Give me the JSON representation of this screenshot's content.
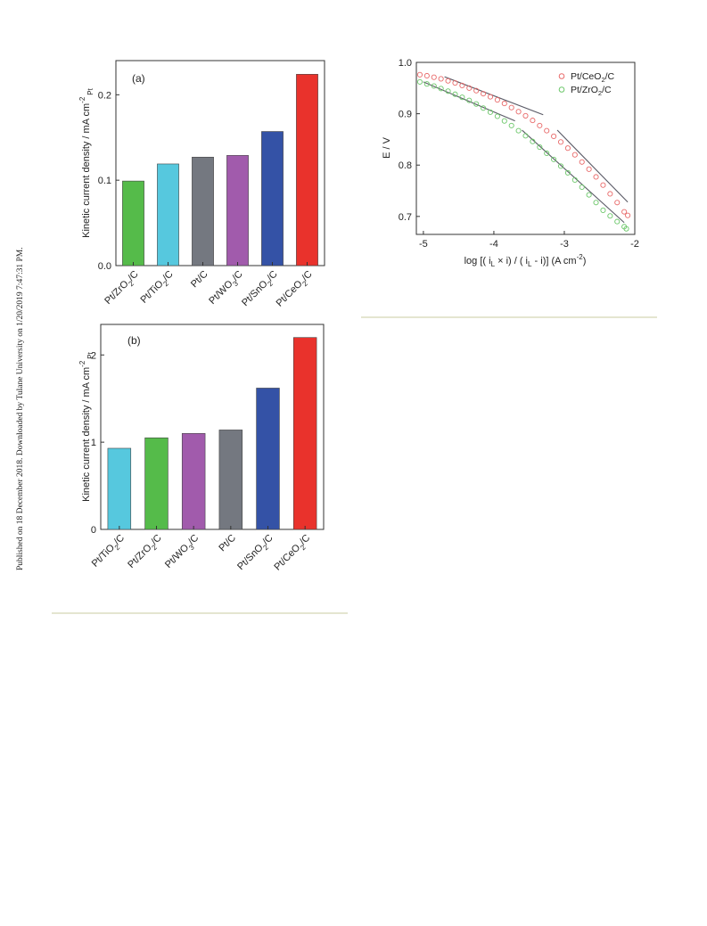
{
  "side_note": "Published on 18 December 2018. Downloaded by Tulane University on 1/20/2019 7:47:31 PM.",
  "chart_data": [
    {
      "type": "bar",
      "panel_label": "(a)",
      "ylabel": "Kinetic current density / mA cm",
      "ylabel_sup": "-2",
      "ylabel_sub": "Pt",
      "ylim": [
        0,
        0.24
      ],
      "yticks": [
        "0.0",
        "0.1",
        "0.2"
      ],
      "categories": [
        {
          "main": "Pt/ZrO",
          "sub": "2",
          "tail": "/C"
        },
        {
          "main": "Pt/TiO",
          "sub": "2",
          "tail": "/C"
        },
        {
          "main": "Pt/C",
          "sub": "",
          "tail": ""
        },
        {
          "main": "Pt/WO",
          "sub": "3",
          "tail": "/C"
        },
        {
          "main": "Pt/SnO",
          "sub": "2",
          "tail": "/C"
        },
        {
          "main": "Pt/CeO",
          "sub": "2",
          "tail": "/C"
        }
      ],
      "values": [
        0.099,
        0.119,
        0.127,
        0.129,
        0.157,
        0.224
      ],
      "colors": [
        "#55bb4a",
        "#56c8de",
        "#747880",
        "#a15bac",
        "#3452a6",
        "#e9322c"
      ]
    },
    {
      "type": "bar",
      "panel_label": "(b)",
      "ylabel": "Kinetic current density / mA cm",
      "ylabel_sup": "-2",
      "ylabel_sub": "Pt",
      "ylim": [
        0,
        2.35
      ],
      "yticks": [
        "0",
        "1",
        "2"
      ],
      "categories": [
        {
          "main": "Pt/TiO",
          "sub": "2",
          "tail": "/C"
        },
        {
          "main": "Pt/ZrO",
          "sub": "2",
          "tail": "/C"
        },
        {
          "main": "Pt/WO",
          "sub": "3",
          "tail": "/C"
        },
        {
          "main": "Pt/C",
          "sub": "",
          "tail": ""
        },
        {
          "main": "Pt/SnO",
          "sub": "2",
          "tail": "/C"
        },
        {
          "main": "Pt/CeO",
          "sub": "2",
          "tail": "/C"
        }
      ],
      "values": [
        0.93,
        1.05,
        1.1,
        1.14,
        1.62,
        2.2
      ],
      "colors": [
        "#56c8de",
        "#55bb4a",
        "#a15bac",
        "#747880",
        "#3452a6",
        "#e9322c"
      ]
    },
    {
      "type": "scatter",
      "ylabel": "E / V",
      "xlabel_parts": [
        "log [( i",
        "L",
        " × i) / ( i",
        "L",
        " - i)] (A cm",
        "-2",
        ")"
      ],
      "xlim": [
        -5.1,
        -2.0
      ],
      "ylim": [
        0.665,
        1.0
      ],
      "xticks": [
        "-5",
        "-4",
        "-3",
        "-2"
      ],
      "xtick_values": [
        -5,
        -4,
        -3,
        -2
      ],
      "yticks": [
        "0.7",
        "0.8",
        "0.9",
        "1.0"
      ],
      "ytick_values": [
        0.7,
        0.8,
        0.9,
        1.0
      ],
      "legend_position": "top-right",
      "series": [
        {
          "name_main": "Pt/CeO",
          "name_sub": "2",
          "name_tail": "/C",
          "color": "#e86a6a",
          "x": [
            -5.05,
            -4.95,
            -4.85,
            -4.75,
            -4.65,
            -4.55,
            -4.45,
            -4.35,
            -4.25,
            -4.15,
            -4.05,
            -3.95,
            -3.85,
            -3.75,
            -3.65,
            -3.55,
            -3.45,
            -3.35,
            -3.25,
            -3.15,
            -3.05,
            -2.95,
            -2.85,
            -2.75,
            -2.65,
            -2.55,
            -2.45,
            -2.35,
            -2.25,
            -2.15,
            -2.1
          ],
          "y": [
            0.976,
            0.974,
            0.971,
            0.968,
            0.964,
            0.96,
            0.955,
            0.95,
            0.945,
            0.939,
            0.933,
            0.927,
            0.92,
            0.912,
            0.904,
            0.896,
            0.887,
            0.877,
            0.867,
            0.856,
            0.845,
            0.833,
            0.82,
            0.806,
            0.792,
            0.777,
            0.761,
            0.744,
            0.727,
            0.709,
            0.702
          ],
          "fit_lines": [
            {
              "x": [
                -4.7,
                -3.3
              ],
              "y": [
                0.972,
                0.898
              ]
            },
            {
              "x": [
                -3.1,
                -2.1
              ],
              "y": [
                0.868,
                0.728
              ]
            }
          ]
        },
        {
          "name_main": "Pt/ZrO",
          "name_sub": "2",
          "name_tail": "/C",
          "color": "#6cc76a",
          "x": [
            -5.05,
            -4.95,
            -4.85,
            -4.75,
            -4.65,
            -4.55,
            -4.45,
            -4.35,
            -4.25,
            -4.15,
            -4.05,
            -3.95,
            -3.85,
            -3.75,
            -3.65,
            -3.55,
            -3.45,
            -3.35,
            -3.25,
            -3.15,
            -3.05,
            -2.95,
            -2.85,
            -2.75,
            -2.65,
            -2.55,
            -2.45,
            -2.35,
            -2.25,
            -2.15,
            -2.12
          ],
          "y": [
            0.962,
            0.958,
            0.954,
            0.949,
            0.944,
            0.938,
            0.932,
            0.926,
            0.919,
            0.911,
            0.903,
            0.895,
            0.886,
            0.877,
            0.867,
            0.857,
            0.846,
            0.835,
            0.823,
            0.811,
            0.798,
            0.785,
            0.771,
            0.757,
            0.742,
            0.727,
            0.712,
            0.701,
            0.69,
            0.68,
            0.676
          ],
          "fit_lines": [
            {
              "x": [
                -5.0,
                -3.7
              ],
              "y": [
                0.962,
                0.886
              ]
            },
            {
              "x": [
                -3.6,
                -2.15
              ],
              "y": [
                0.868,
                0.688
              ]
            }
          ]
        }
      ]
    }
  ]
}
